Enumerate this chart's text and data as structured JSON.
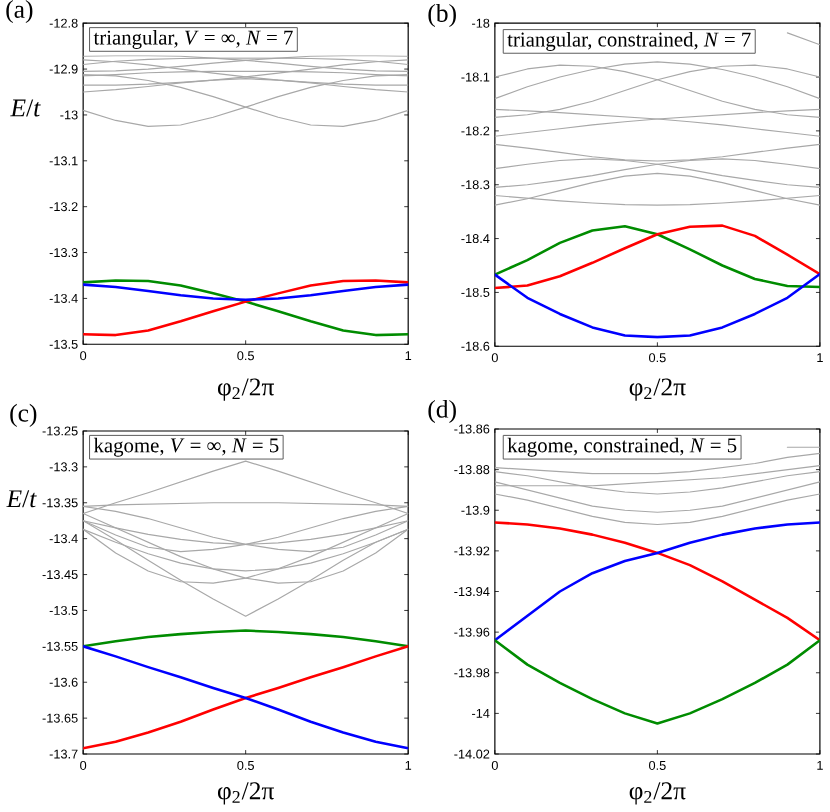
{
  "chart_data": [
    {
      "type": "line",
      "title": "(a)",
      "xlabel": "φ$_{2}$/2π",
      "ylabel": "*E*/*t*",
      "annotations": [
        "triangular, *V* = ∞, *N* = 7"
      ],
      "x": [
        0,
        0.1,
        0.2,
        0.3,
        0.4,
        0.5,
        0.6,
        0.7,
        0.8,
        0.9,
        1
      ],
      "xlim": [
        0,
        1
      ],
      "xticks": [
        0,
        0.5,
        1
      ],
      "ylim": [
        -13.5,
        -12.8
      ],
      "yticks": [
        -12.8,
        -12.9,
        -13,
        -13.1,
        -13.2,
        -13.3,
        -13.4,
        -13.5
      ],
      "series": [
        {
          "color": "#a8a8a8",
          "values": [
            -12.872,
            -12.871,
            -12.871,
            -12.872,
            -12.876,
            -12.881,
            -12.887,
            -12.894,
            -12.9,
            -12.904,
            -12.905
          ]
        },
        {
          "color": "#a8a8a8",
          "values": [
            -12.905,
            -12.904,
            -12.9,
            -12.894,
            -12.887,
            -12.881,
            -12.876,
            -12.872,
            -12.871,
            -12.871,
            -12.872
          ]
        },
        {
          "color": "#a8a8a8",
          "values": [
            -12.88,
            -12.884,
            -12.891,
            -12.9,
            -12.909,
            -12.917,
            -12.924,
            -12.929,
            -12.933,
            -12.935,
            -12.935
          ]
        },
        {
          "color": "#a8a8a8",
          "values": [
            -12.935,
            -12.935,
            -12.933,
            -12.929,
            -12.924,
            -12.917,
            -12.909,
            -12.9,
            -12.891,
            -12.884,
            -12.88
          ]
        },
        {
          "color": "#a8a8a8",
          "values": [
            -12.89,
            -12.883,
            -12.879,
            -12.877,
            -12.876,
            -12.876,
            -12.876,
            -12.877,
            -12.879,
            -12.883,
            -12.89
          ]
        },
        {
          "color": "#a8a8a8",
          "values": [
            -12.95,
            -12.945,
            -12.938,
            -12.93,
            -12.924,
            -12.921,
            -12.924,
            -12.93,
            -12.938,
            -12.945,
            -12.95
          ]
        },
        {
          "color": "#a8a8a8",
          "values": [
            -12.915,
            -12.912,
            -12.908,
            -12.906,
            -12.905,
            -12.905,
            -12.905,
            -12.906,
            -12.908,
            -12.912,
            -12.915
          ]
        },
        {
          "color": "#a8a8a8",
          "values": [
            -12.99,
            -13.012,
            -13.025,
            -13.022,
            -13.005,
            -12.983,
            -12.96,
            -12.94,
            -12.925,
            -12.915,
            -12.912
          ]
        },
        {
          "color": "#a8a8a8",
          "values": [
            -12.912,
            -12.915,
            -12.925,
            -12.94,
            -12.96,
            -12.983,
            -13.005,
            -13.022,
            -13.025,
            -13.012,
            -12.99
          ]
        },
        {
          "color": "#008c00",
          "values": [
            -13.365,
            -13.361,
            -13.362,
            -13.372,
            -13.389,
            -13.407,
            -13.428,
            -13.45,
            -13.47,
            -13.48,
            -13.478
          ]
        },
        {
          "color": "#ff0000",
          "values": [
            -13.478,
            -13.48,
            -13.47,
            -13.45,
            -13.428,
            -13.407,
            -13.389,
            -13.372,
            -13.362,
            -13.361,
            -13.365
          ]
        },
        {
          "color": "#0000ff",
          "values": [
            -13.37,
            -13.375,
            -13.384,
            -13.393,
            -13.4,
            -13.403,
            -13.4,
            -13.393,
            -13.384,
            -13.375,
            -13.37
          ]
        }
      ]
    },
    {
      "type": "line",
      "title": "(b)",
      "xlabel": "φ$_{2}$/2π",
      "annotations": [
        "triangular, constrained, *N* = 7"
      ],
      "x": [
        0,
        0.1,
        0.2,
        0.3,
        0.4,
        0.5,
        0.6,
        0.7,
        0.8,
        0.9,
        1
      ],
      "xlim": [
        0,
        1
      ],
      "xticks": [
        0,
        0.5,
        1
      ],
      "ylim": [
        -18.6,
        -18
      ],
      "yticks": [
        -18,
        -18.1,
        -18.2,
        -18.3,
        -18.4,
        -18.5,
        -18.6
      ],
      "series": [
        {
          "color": "#a8a8a8",
          "values": [
            null,
            null,
            null,
            null,
            null,
            null,
            null,
            null,
            null,
            -18.018,
            -18.04
          ]
        },
        {
          "color": "#a8a8a8",
          "values": [
            -18.1,
            -18.085,
            -18.078,
            -18.08,
            -18.09,
            -18.105,
            -18.125,
            -18.145,
            -18.16,
            -18.17,
            -18.175
          ]
        },
        {
          "color": "#a8a8a8",
          "values": [
            -18.175,
            -18.17,
            -18.16,
            -18.145,
            -18.125,
            -18.105,
            -18.09,
            -18.08,
            -18.078,
            -18.085,
            -18.1
          ]
        },
        {
          "color": "#a8a8a8",
          "values": [
            -18.14,
            -18.118,
            -18.1,
            -18.086,
            -18.076,
            -18.072,
            -18.076,
            -18.086,
            -18.1,
            -18.118,
            -18.14
          ]
        },
        {
          "color": "#a8a8a8",
          "values": [
            -18.16,
            -18.163,
            -18.166,
            -18.17,
            -18.174,
            -18.178,
            -18.183,
            -18.189,
            -18.196,
            -18.203,
            -18.21
          ]
        },
        {
          "color": "#a8a8a8",
          "values": [
            -18.21,
            -18.203,
            -18.196,
            -18.189,
            -18.183,
            -18.178,
            -18.174,
            -18.17,
            -18.166,
            -18.163,
            -18.16
          ]
        },
        {
          "color": "#a8a8a8",
          "values": [
            -18.225,
            -18.232,
            -18.24,
            -18.248,
            -18.254,
            -18.256,
            -18.254,
            -18.248,
            -18.24,
            -18.232,
            -18.225
          ]
        },
        {
          "color": "#a8a8a8",
          "values": [
            -18.27,
            -18.262,
            -18.255,
            -18.252,
            -18.255,
            -18.262,
            -18.272,
            -18.283,
            -18.292,
            -18.3,
            -18.305
          ]
        },
        {
          "color": "#a8a8a8",
          "values": [
            -18.305,
            -18.3,
            -18.292,
            -18.283,
            -18.272,
            -18.262,
            -18.255,
            -18.252,
            -18.255,
            -18.262,
            -18.27
          ]
        },
        {
          "color": "#a8a8a8",
          "values": [
            -18.338,
            -18.326,
            -18.311,
            -18.296,
            -18.284,
            -18.279,
            -18.284,
            -18.296,
            -18.311,
            -18.326,
            -18.338
          ]
        },
        {
          "color": "#a8a8a8",
          "values": [
            -18.32,
            -18.325,
            -18.33,
            -18.334,
            -18.337,
            -18.338,
            -18.337,
            -18.334,
            -18.33,
            -18.325,
            -18.32
          ]
        },
        {
          "color": "#008c00",
          "values": [
            -18.467,
            -18.44,
            -18.408,
            -18.385,
            -18.377,
            -18.392,
            -18.42,
            -18.45,
            -18.475,
            -18.488,
            -18.49
          ]
        },
        {
          "color": "#ff0000",
          "values": [
            -18.492,
            -18.487,
            -18.47,
            -18.445,
            -18.418,
            -18.392,
            -18.378,
            -18.376,
            -18.395,
            -18.43,
            -18.466
          ]
        },
        {
          "color": "#0000ff",
          "values": [
            -18.467,
            -18.51,
            -18.54,
            -18.565,
            -18.58,
            -18.583,
            -18.58,
            -18.565,
            -18.54,
            -18.51,
            -18.466
          ]
        }
      ]
    },
    {
      "type": "line",
      "title": "(c)",
      "xlabel": "φ$_{2}$/2π",
      "ylabel": "*E*/*t*",
      "annotations": [
        "kagome, *V* = ∞, *N* = 5"
      ],
      "x": [
        0,
        0.1,
        0.2,
        0.3,
        0.4,
        0.5,
        0.6,
        0.7,
        0.8,
        0.9,
        1
      ],
      "xlim": [
        0,
        1
      ],
      "xticks": [
        0,
        0.5,
        1
      ],
      "ylim": [
        -13.7,
        -13.25
      ],
      "yticks": [
        -13.25,
        -13.3,
        -13.35,
        -13.4,
        -13.45,
        -13.5,
        -13.55,
        -13.6,
        -13.65,
        -13.7
      ],
      "series": [
        {
          "color": "#a8a8a8",
          "values": [
            -13.365,
            -13.35,
            -13.336,
            -13.321,
            -13.306,
            -13.292,
            -13.306,
            -13.321,
            -13.336,
            -13.35,
            -13.365
          ]
        },
        {
          "color": "#a8a8a8",
          "values": [
            -13.355,
            -13.353,
            -13.352,
            -13.351,
            -13.35,
            -13.35,
            -13.35,
            -13.351,
            -13.352,
            -13.353,
            -13.355
          ]
        },
        {
          "color": "#a8a8a8",
          "values": [
            -13.375,
            -13.385,
            -13.394,
            -13.401,
            -13.406,
            -13.408,
            -13.406,
            -13.401,
            -13.394,
            -13.385,
            -13.375
          ]
        },
        {
          "color": "#a8a8a8",
          "values": [
            -13.387,
            -13.405,
            -13.421,
            -13.434,
            -13.442,
            -13.445,
            -13.442,
            -13.434,
            -13.421,
            -13.405,
            -13.387
          ]
        },
        {
          "color": "#a8a8a8",
          "values": [
            -13.365,
            -13.385,
            -13.405,
            -13.425,
            -13.442,
            -13.455,
            -13.462,
            -13.46,
            -13.445,
            -13.42,
            -13.387
          ]
        },
        {
          "color": "#a8a8a8",
          "values": [
            -13.387,
            -13.42,
            -13.445,
            -13.46,
            -13.462,
            -13.455,
            -13.442,
            -13.425,
            -13.405,
            -13.385,
            -13.365
          ]
        },
        {
          "color": "#a8a8a8",
          "values": [
            -13.375,
            -13.402,
            -13.43,
            -13.458,
            -13.484,
            -13.508,
            -13.484,
            -13.458,
            -13.43,
            -13.405,
            -13.387
          ]
        },
        {
          "color": "#a8a8a8",
          "values": [
            -13.355,
            -13.362,
            -13.372,
            -13.385,
            -13.398,
            -13.408,
            -13.415,
            -13.418,
            -13.412,
            -13.395,
            -13.375
          ]
        },
        {
          "color": "#a8a8a8",
          "values": [
            -13.375,
            -13.395,
            -13.412,
            -13.418,
            -13.415,
            -13.408,
            -13.398,
            -13.385,
            -13.372,
            -13.362,
            -13.355
          ]
        },
        {
          "color": "#008c00",
          "values": [
            -13.55,
            -13.543,
            -13.537,
            -13.533,
            -13.53,
            -13.528,
            -13.53,
            -13.533,
            -13.537,
            -13.543,
            -13.55
          ]
        },
        {
          "color": "#ff0000",
          "values": [
            -13.692,
            -13.683,
            -13.67,
            -13.655,
            -13.638,
            -13.622,
            -13.608,
            -13.593,
            -13.579,
            -13.564,
            -13.55
          ]
        },
        {
          "color": "#0000ff",
          "values": [
            -13.55,
            -13.564,
            -13.579,
            -13.593,
            -13.608,
            -13.622,
            -13.638,
            -13.655,
            -13.67,
            -13.683,
            -13.692
          ]
        }
      ]
    },
    {
      "type": "line",
      "title": "(d)",
      "xlabel": "φ$_{2}$/2π",
      "annotations": [
        "kagome, constrained, *N* = 5"
      ],
      "x": [
        0,
        0.1,
        0.2,
        0.3,
        0.4,
        0.5,
        0.6,
        0.7,
        0.8,
        0.9,
        1
      ],
      "xlim": [
        0,
        1
      ],
      "xticks": [
        0,
        0.5,
        1
      ],
      "ylim": [
        -14.02,
        -13.86
      ],
      "yticks": [
        -13.86,
        -13.88,
        -13.9,
        -13.92,
        -13.94,
        -13.96,
        -13.98,
        -14,
        -14.02
      ],
      "series": [
        {
          "color": "#a8a8a8",
          "values": [
            null,
            null,
            null,
            null,
            null,
            null,
            null,
            null,
            null,
            -13.869,
            -13.869
          ]
        },
        {
          "color": "#a8a8a8",
          "values": [
            -13.879,
            -13.88,
            -13.881,
            -13.882,
            -13.882,
            -13.882,
            -13.881,
            -13.879,
            -13.877,
            -13.874,
            -13.872
          ]
        },
        {
          "color": "#a8a8a8",
          "values": [
            -13.888,
            -13.888,
            -13.888,
            -13.888,
            -13.887,
            -13.886,
            -13.885,
            -13.884,
            -13.882,
            -13.88,
            -13.878
          ]
        },
        {
          "color": "#a8a8a8",
          "values": [
            -13.881,
            -13.883,
            -13.886,
            -13.889,
            -13.891,
            -13.892,
            -13.891,
            -13.889,
            -13.886,
            -13.883,
            -13.881
          ]
        },
        {
          "color": "#a8a8a8",
          "values": [
            -13.886,
            -13.89,
            -13.894,
            -13.898,
            -13.9,
            -13.901,
            -13.9,
            -13.898,
            -13.894,
            -13.89,
            -13.886
          ]
        },
        {
          "color": "#a8a8a8",
          "values": [
            -13.892,
            -13.895,
            -13.899,
            -13.903,
            -13.906,
            -13.907,
            -13.906,
            -13.903,
            -13.899,
            -13.895,
            -13.892
          ]
        },
        {
          "color": "#ff0000",
          "values": [
            -13.906,
            -13.907,
            -13.909,
            -13.912,
            -13.916,
            -13.921,
            -13.927,
            -13.935,
            -13.944,
            -13.953,
            -13.964
          ]
        },
        {
          "color": "#0000ff",
          "values": [
            -13.964,
            -13.952,
            -13.94,
            -13.931,
            -13.925,
            -13.921,
            -13.916,
            -13.912,
            -13.909,
            -13.907,
            -13.906
          ]
        },
        {
          "color": "#008c00",
          "values": [
            -13.964,
            -13.976,
            -13.985,
            -13.993,
            -14.0,
            -14.005,
            -14.0,
            -13.993,
            -13.985,
            -13.976,
            -13.964
          ]
        }
      ]
    }
  ]
}
